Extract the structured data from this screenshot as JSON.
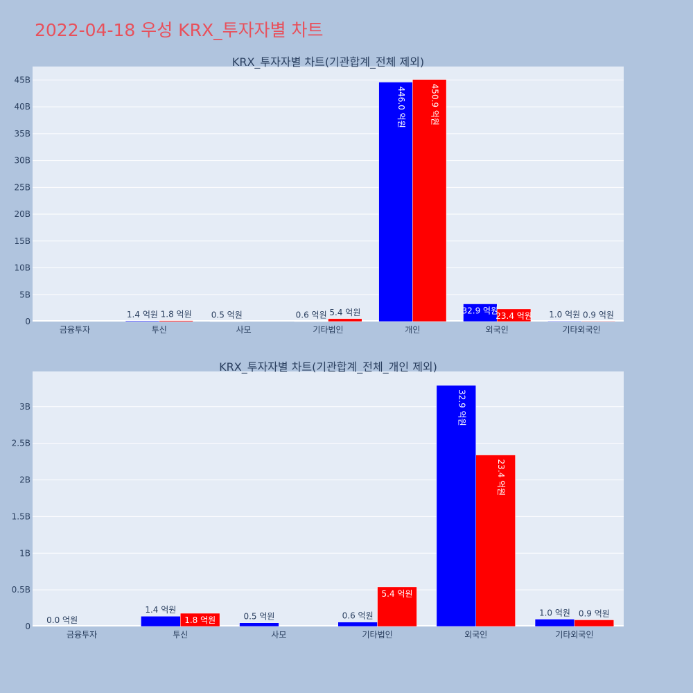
{
  "title": "2022-04-18 우성 KRX_투자자별 차트",
  "colors": {
    "buy": "#0000ff",
    "sell": "#ff0000",
    "plot_bg": "#e5ecf6",
    "page_bg": "#b0c4de",
    "title": "#e8505b"
  },
  "chart_data": [
    {
      "type": "bar",
      "title": "KRX_투자자별 차트(기관합계_전체 제외)",
      "categories": [
        "금융투자",
        "투신",
        "사모",
        "기타법인",
        "개인",
        "외국인",
        "기타외국인"
      ],
      "ylim": [
        0,
        47.5
      ],
      "yticks": [
        0,
        5,
        10,
        15,
        20,
        25,
        30,
        35,
        40,
        45
      ],
      "ytick_labels": [
        "0",
        "5B",
        "10B",
        "15B",
        "20B",
        "25B",
        "30B",
        "35B",
        "40B",
        "45B"
      ],
      "grid": true,
      "series": [
        {
          "values": [
            0,
            0.14,
            0.05,
            0.06,
            44.6,
            3.29,
            0.1
          ],
          "labels": [
            "",
            "1.4 억원",
            "0.5 억원",
            "0.6 억원",
            "446.0 억원",
            "32.9 억원",
            "1.0 억원"
          ]
        },
        {
          "values": [
            0,
            0.18,
            0,
            0.54,
            45.09,
            2.34,
            0.09
          ],
          "labels": [
            "",
            "1.8 억원",
            "",
            "5.4 억원",
            "450.9 억원",
            "23.4 억원",
            "0.9 억원"
          ]
        }
      ]
    },
    {
      "type": "bar",
      "title": "KRX_투자자별 차트(기관합계_전체_개인 제외)",
      "categories": [
        "금융투자",
        "투신",
        "사모",
        "기타법인",
        "외국인",
        "기타외국인"
      ],
      "ylim": [
        0,
        3.48
      ],
      "yticks": [
        0,
        0.5,
        1,
        1.5,
        2,
        2.5,
        3
      ],
      "ytick_labels": [
        "0",
        "0.5B",
        "1B",
        "1.5B",
        "2B",
        "2.5B",
        "3B"
      ],
      "grid": true,
      "series": [
        {
          "values": [
            0,
            0.14,
            0.05,
            0.06,
            3.29,
            0.1
          ],
          "labels": [
            "0.0 억원",
            "1.4 억원",
            "0.5 억원",
            "0.6 억원",
            "32.9 억원",
            "1.0 억원"
          ]
        },
        {
          "values": [
            0,
            0.18,
            0,
            0.54,
            2.34,
            0.09
          ],
          "labels": [
            "",
            "1.8 억원",
            "",
            "5.4 억원",
            "23.4 억원",
            "0.9 억원"
          ]
        }
      ]
    }
  ]
}
